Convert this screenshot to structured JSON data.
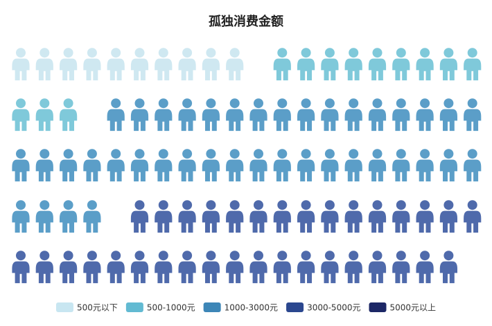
{
  "chart_data": {
    "type": "pictorial",
    "title": "孤独消费金额",
    "unit_icon": "person-icon",
    "total_icons": 100,
    "series": [
      {
        "name": "500元以下",
        "value": 10.6,
        "color": "#cfe8f1"
      },
      {
        "name": "500-1000元",
        "value": 13.2,
        "color": "#7fc9da"
      },
      {
        "name": "1000-3000元",
        "value": 41.1,
        "color": "#5b9ec8"
      },
      {
        "name": "3000-5000元",
        "value": 34.8,
        "color": "#4f6aab"
      },
      {
        "name": "5000元以上",
        "value": 0.3,
        "color": "#2a3f78"
      }
    ],
    "legend": {
      "position": "bottom",
      "swatch_colors": [
        "#c8e6f1",
        "#62bad2",
        "#3d86b7",
        "#2b478f",
        "#1c2766"
      ]
    }
  }
}
